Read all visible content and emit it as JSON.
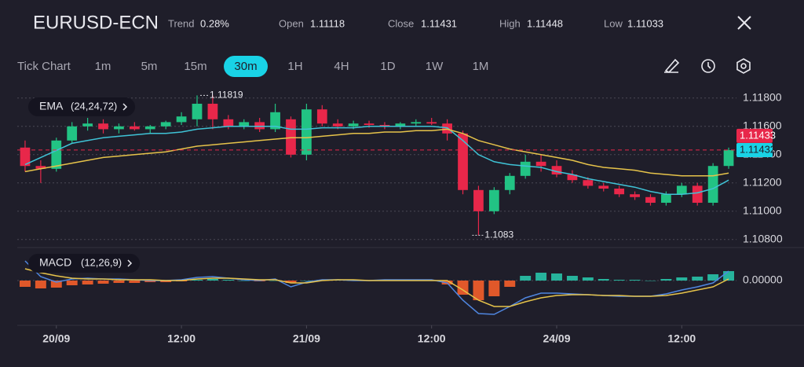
{
  "header": {
    "title": "EURUSD-ECN",
    "stats": [
      {
        "label": "Trend",
        "value": "0.28%"
      },
      {
        "label": "Open",
        "value": "1.11118"
      },
      {
        "label": "Close",
        "value": "1.11431"
      },
      {
        "label": "High",
        "value": "1.11448"
      },
      {
        "label": "Low",
        "value": "1.11033"
      }
    ]
  },
  "toolbar": {
    "mode": "Tick Chart",
    "timeframes": [
      "1m",
      "5m",
      "15m",
      "30m",
      "1H",
      "4H",
      "1D",
      "1W",
      "1M"
    ],
    "active": 3
  },
  "chart_data": [
    {
      "type": "candlestick",
      "label": "EMA",
      "params": "(24,24,72)",
      "up_color": "#22c384",
      "down_color": "#e8274a",
      "xlim": [
        -0.5,
        45.5
      ],
      "ylim": [
        1.1076,
        1.1186
      ],
      "yticks": [
        {
          "value": 1.118,
          "label": "1.11800"
        },
        {
          "value": 1.116,
          "label": "1.11600"
        },
        {
          "value": 1.114,
          "label": "1.11400"
        },
        {
          "value": 1.112,
          "label": "1.11200"
        },
        {
          "value": 1.11,
          "label": "1.11000"
        },
        {
          "value": 1.108,
          "label": "1.10800"
        }
      ],
      "grid": true,
      "open": [
        1.1145,
        1.1132,
        1.113,
        1.115,
        1.116,
        1.1162,
        1.1158,
        1.116,
        1.1158,
        1.116,
        1.1163,
        1.1165,
        1.1176,
        1.1165,
        1.116,
        1.1163,
        1.1158,
        1.1165,
        1.114,
        1.1172,
        1.1162,
        1.116,
        1.1162,
        1.1161,
        1.116,
        1.1162,
        1.1163,
        1.1162,
        1.1155,
        1.1115,
        1.11,
        1.1115,
        1.1125,
        1.1135,
        1.1132,
        1.1126,
        1.1122,
        1.1118,
        1.1116,
        1.1112,
        1.111,
        1.1106,
        1.1112,
        1.1118,
        1.1106,
        1.1132
      ],
      "high": [
        1.115,
        1.1136,
        1.1152,
        1.1163,
        1.1166,
        1.1165,
        1.1162,
        1.1163,
        1.1161,
        1.1164,
        1.117,
        1.11819,
        1.11819,
        1.1168,
        1.1165,
        1.1166,
        1.1176,
        1.1167,
        1.1176,
        1.1175,
        1.1165,
        1.1164,
        1.1164,
        1.1163,
        1.1163,
        1.1165,
        1.1166,
        1.1165,
        1.1157,
        1.1118,
        1.1117,
        1.1127,
        1.114,
        1.114,
        1.1136,
        1.1129,
        1.1124,
        1.112,
        1.1118,
        1.1114,
        1.1112,
        1.1114,
        1.112,
        1.112,
        1.1134,
        1.1145
      ],
      "low": [
        1.1128,
        1.112,
        1.1128,
        1.1148,
        1.1157,
        1.1155,
        1.1155,
        1.1157,
        1.1155,
        1.1158,
        1.1161,
        1.116,
        1.1158,
        1.1158,
        1.1158,
        1.1156,
        1.1156,
        1.1138,
        1.1136,
        1.116,
        1.1158,
        1.1158,
        1.1159,
        1.1158,
        1.1158,
        1.116,
        1.1161,
        1.115,
        1.1112,
        1.1083,
        1.1098,
        1.1112,
        1.1123,
        1.1128,
        1.1124,
        1.112,
        1.1116,
        1.1114,
        1.111,
        1.1108,
        1.1104,
        1.1104,
        1.111,
        1.1104,
        1.1104,
        1.113
      ],
      "close": [
        1.1132,
        1.113,
        1.115,
        1.116,
        1.1162,
        1.1158,
        1.116,
        1.1158,
        1.116,
        1.1163,
        1.1167,
        1.1176,
        1.1165,
        1.116,
        1.1163,
        1.1158,
        1.117,
        1.114,
        1.1172,
        1.1162,
        1.116,
        1.1162,
        1.1161,
        1.116,
        1.1162,
        1.1163,
        1.1162,
        1.1155,
        1.1115,
        1.11,
        1.1115,
        1.1125,
        1.1135,
        1.1132,
        1.1126,
        1.1122,
        1.1118,
        1.1116,
        1.1112,
        1.111,
        1.1106,
        1.1112,
        1.1118,
        1.1106,
        1.1132,
        1.11432
      ],
      "series": [
        {
          "color": "#3fc3d6",
          "values": [
            1.1133,
            1.1138,
            1.1143,
            1.1148,
            1.115,
            1.1152,
            1.1153,
            1.1154,
            1.1155,
            1.1155,
            1.1156,
            1.1158,
            1.1159,
            1.116,
            1.116,
            1.116,
            1.116,
            1.1158,
            1.1158,
            1.1159,
            1.1159,
            1.1159,
            1.116,
            1.116,
            1.116,
            1.116,
            1.116,
            1.1159,
            1.115,
            1.114,
            1.1135,
            1.1133,
            1.1132,
            1.1131,
            1.1128,
            1.1126,
            1.1123,
            1.1121,
            1.1119,
            1.1117,
            1.1114,
            1.1112,
            1.1112,
            1.1113,
            1.1116,
            1.1122
          ]
        },
        {
          "color": "#e6c34a",
          "values": [
            1.1128,
            1.113,
            1.1132,
            1.1134,
            1.1136,
            1.1138,
            1.1139,
            1.114,
            1.1141,
            1.1142,
            1.1144,
            1.1146,
            1.1147,
            1.1148,
            1.1149,
            1.115,
            1.1151,
            1.1152,
            1.1152,
            1.1153,
            1.1154,
            1.1155,
            1.1155,
            1.1156,
            1.1156,
            1.1157,
            1.1157,
            1.1158,
            1.1155,
            1.115,
            1.1147,
            1.1144,
            1.1142,
            1.114,
            1.1138,
            1.1136,
            1.1133,
            1.1131,
            1.113,
            1.1129,
            1.1127,
            1.1126,
            1.1125,
            1.1125,
            1.1125,
            1.1127
          ]
        }
      ],
      "max_marker": 1.11819,
      "max_index": 11,
      "min_marker": 1.1083,
      "min_index": 29,
      "price_tags": [
        {
          "value": 1.11433,
          "color": "#e8274a"
        },
        {
          "value": 1.11432,
          "color": "#19d3e6"
        }
      ]
    },
    {
      "type": "bar",
      "label": "MACD",
      "params": "(12,26,9)",
      "up_color": "#27b39c",
      "down_color": "#e0582a",
      "xlim": [
        -0.5,
        45.5
      ],
      "ylim": [
        -0.00055,
        0.00039
      ],
      "yticks": [
        {
          "value": 0,
          "label": "0.00000"
        }
      ],
      "xticks": [
        {
          "value": 2,
          "label": "20/09"
        },
        {
          "value": 10,
          "label": "12:00"
        },
        {
          "value": 18,
          "label": "21/09"
        },
        {
          "value": 26,
          "label": "12:00"
        },
        {
          "value": 34,
          "label": "24/09"
        },
        {
          "value": 42,
          "label": "12:00"
        }
      ],
      "values": [
        -8e-05,
        -0.0001,
        -9e-05,
        -6e-05,
        -5e-05,
        -4e-05,
        -3e-05,
        -3e-05,
        -2e-05,
        -2e-05,
        -1e-05,
        1e-05,
        2e-05,
        1e-05,
        0,
        -1e-05,
        0,
        -3e-05,
        0,
        1e-05,
        1e-05,
        0,
        0,
        0,
        0,
        0,
        0,
        -5e-05,
        -0.00018,
        -0.00025,
        -0.0002,
        -8e-05,
        6e-05,
        0.0001,
        9e-05,
        6e-05,
        4e-05,
        2e-05,
        1e-05,
        1e-05,
        0,
        2e-05,
        4e-05,
        5e-05,
        8e-05,
        0.00012
      ],
      "series": [
        {
          "color": "#4f86e0",
          "values": [
            0.00025,
            5e-05,
            -2e-05,
            2e-05,
            3e-05,
            2e-05,
            2e-05,
            1e-05,
            0,
            0,
            1e-05,
            4e-05,
            5e-05,
            3e-05,
            1e-05,
            0,
            2e-05,
            -8e-05,
            -2e-05,
            1e-05,
            1e-05,
            0,
            0,
            1e-05,
            1e-05,
            1e-05,
            1e-05,
            -3e-05,
            -0.00025,
            -0.00042,
            -0.00043,
            -0.00033,
            -0.00022,
            -0.00016,
            -0.00016,
            -0.00017,
            -0.00018,
            -0.00019,
            -0.0002,
            -0.0002,
            -0.0002,
            -0.00017,
            -0.00012,
            -8e-05,
            -3e-05,
            0.00012
          ]
        },
        {
          "color": "#e6c34a",
          "values": [
            0.00015,
            0.0001,
            6e-05,
            3e-05,
            2e-05,
            2e-05,
            1e-05,
            1e-05,
            1e-05,
            0,
            0,
            2e-05,
            3e-05,
            3e-05,
            2e-05,
            1e-05,
            1e-05,
            -3e-05,
            -3e-05,
            0,
            1e-05,
            1e-05,
            0,
            0,
            0,
            0,
            0,
            0,
            -0.00012,
            -0.00025,
            -0.00033,
            -0.00033,
            -0.00027,
            -0.00022,
            -0.00019,
            -0.00018,
            -0.00018,
            -0.00019,
            -0.00019,
            -0.0002,
            -0.0002,
            -0.00019,
            -0.00016,
            -0.00012,
            -8e-05,
            2e-05
          ]
        }
      ]
    }
  ]
}
